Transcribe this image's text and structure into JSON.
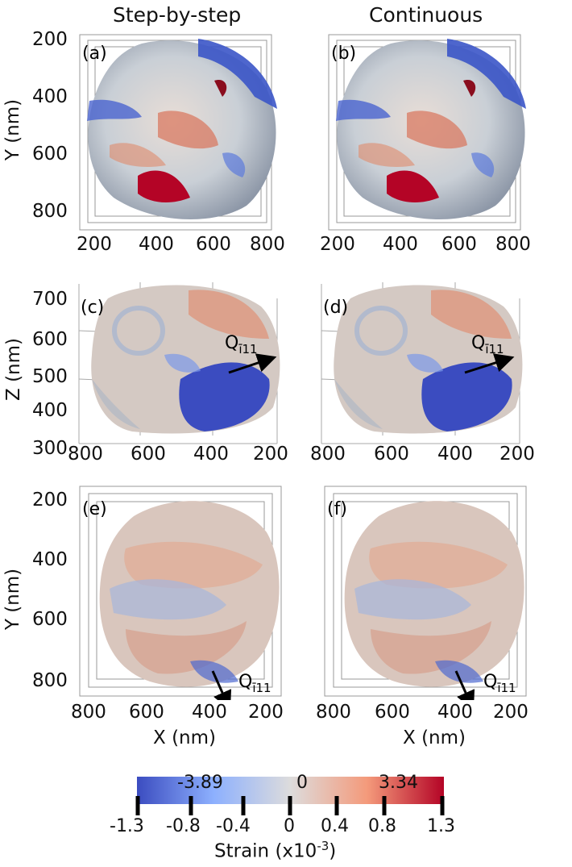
{
  "columns": {
    "left_title": "Step-by-step",
    "right_title": "Continuous"
  },
  "panel_labels": {
    "a": "(a)",
    "b": "(b)",
    "c": "(c)",
    "d": "(d)",
    "e": "(e)",
    "f": "(f)"
  },
  "row1": {
    "y_axis_label": "Y (nm)",
    "y_ticks": [
      "200",
      "400",
      "600",
      "800"
    ],
    "x_ticks": [
      "200",
      "400",
      "600",
      "800"
    ]
  },
  "row2": {
    "y_axis_label": "Z (nm)",
    "y_ticks": [
      "700",
      "600",
      "500",
      "400",
      "300"
    ],
    "x_ticks": [
      "800",
      "600",
      "400",
      "200"
    ],
    "q_label": "Q",
    "q_sub": "ī11"
  },
  "row3": {
    "y_axis_label": "Y (nm)",
    "y_ticks": [
      "200",
      "400",
      "600",
      "800"
    ],
    "x_ticks": [
      "800",
      "600",
      "400",
      "200"
    ],
    "x_axis_label": "X (nm)",
    "q_label": "Q",
    "q_sub": "ī11"
  },
  "colorbar": {
    "top_values": [
      "-3.89",
      "0",
      "3.34"
    ],
    "tick_labels": [
      "-1.3",
      "-0.8",
      "-0.4",
      "0",
      "0.4",
      "0.8",
      "1.3"
    ],
    "label": "Strain (x10",
    "label_exp": "-3",
    "label_close": ")",
    "colors": {
      "neg": "#3b4cc0",
      "mid": "#dddcdc",
      "pos": "#b40426"
    }
  }
}
